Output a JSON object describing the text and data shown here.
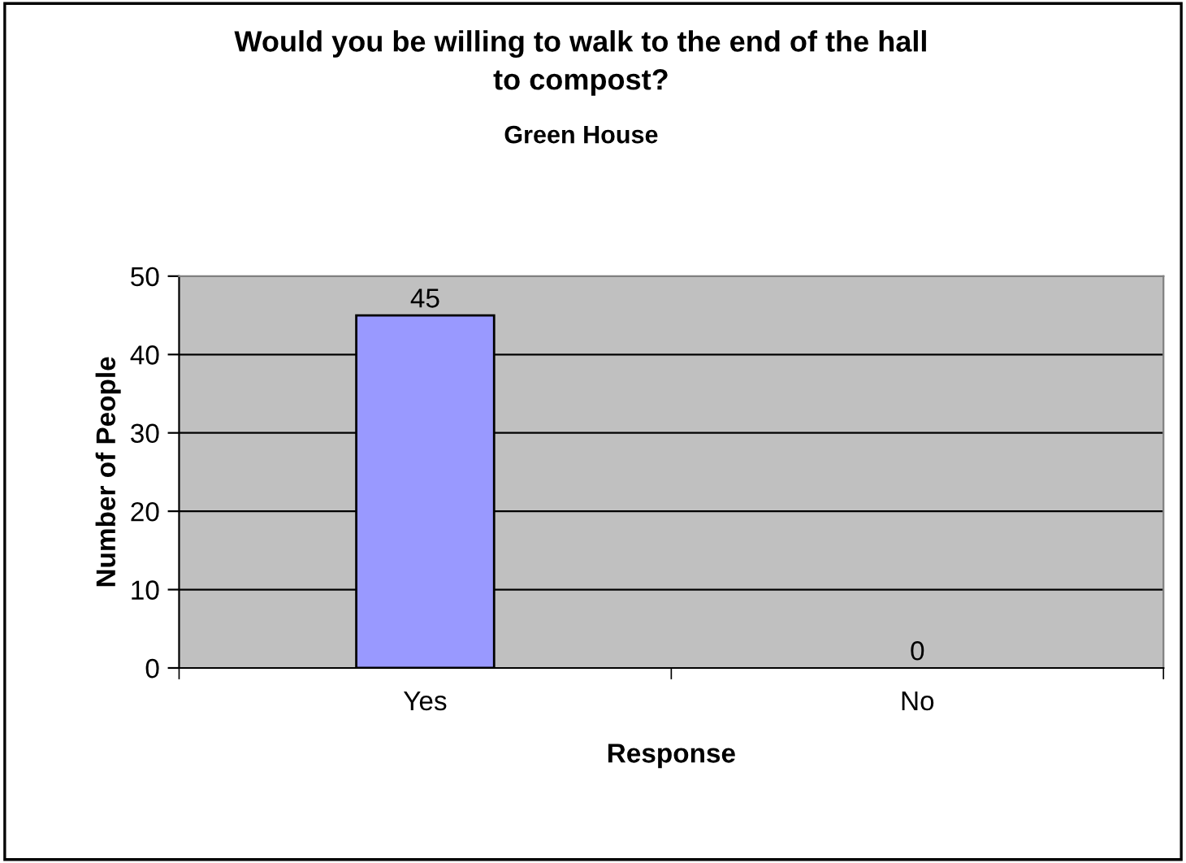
{
  "chart_data": {
    "type": "bar",
    "title": "Would you be willing to walk to the end of the hall\nto compost?",
    "subtitle": "Green House",
    "xlabel": "Response",
    "ylabel": "Number of People",
    "categories": [
      "Yes",
      "No"
    ],
    "values": [
      45,
      0
    ],
    "color": "#9999ff",
    "ylim": [
      0,
      50
    ],
    "yticks": [
      0,
      10,
      20,
      30,
      40,
      50
    ],
    "grid": "y",
    "data_labels": true,
    "legend": false
  }
}
